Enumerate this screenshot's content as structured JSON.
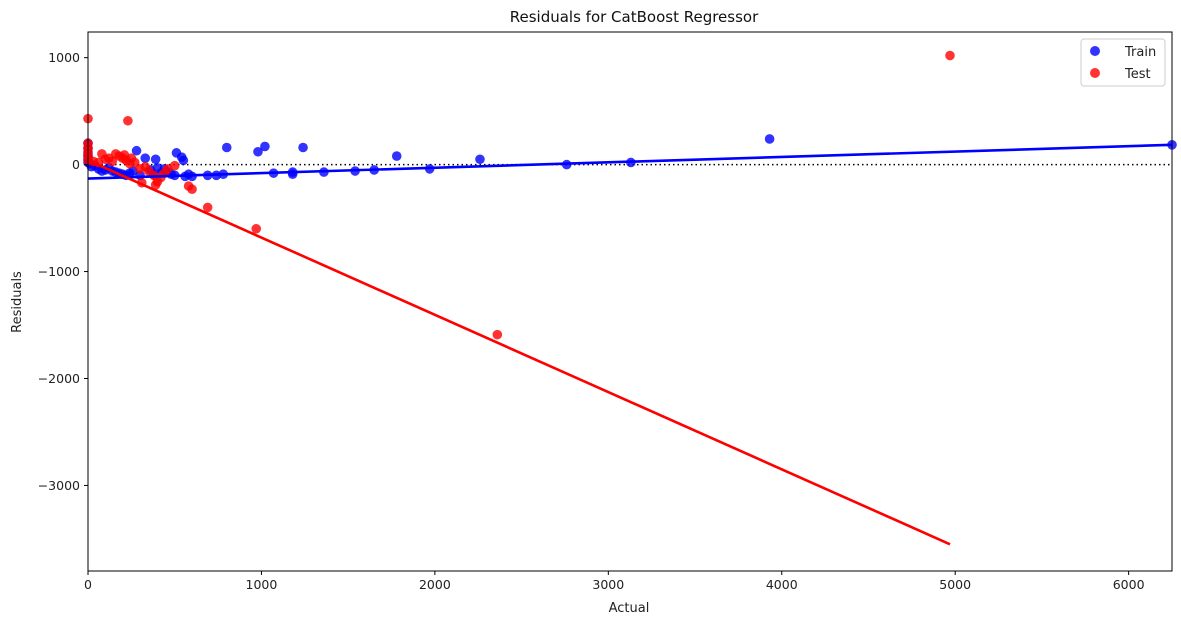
{
  "chart_data": {
    "type": "scatter",
    "title": "Residuals for CatBoost Regressor",
    "xlabel": "Actual",
    "ylabel": "Residuals",
    "xlim": [
      0,
      6250
    ],
    "ylim": [
      -3800,
      1240
    ],
    "xticks": [
      0,
      1000,
      2000,
      3000,
      4000,
      5000,
      6000
    ],
    "yticks": [
      -3000,
      -2000,
      -1000,
      0,
      1000
    ],
    "xtick_labels": [
      "0",
      "1000",
      "2000",
      "3000",
      "4000",
      "5000",
      "6000"
    ],
    "ytick_labels": [
      "−3000",
      "−2000",
      "−1000",
      "0",
      "1000"
    ],
    "zero_line": {
      "y": 0,
      "style": "dotted",
      "color": "#000000"
    },
    "legend_position": "top-right",
    "grid": false,
    "series": [
      {
        "name": "Train",
        "color": "#0000ff",
        "points": [
          [
            0,
            200
          ],
          [
            0,
            150
          ],
          [
            0,
            100
          ],
          [
            0,
            80
          ],
          [
            0,
            50
          ],
          [
            0,
            20
          ],
          [
            10,
            10
          ],
          [
            20,
            -20
          ],
          [
            40,
            -10
          ],
          [
            60,
            -40
          ],
          [
            80,
            -60
          ],
          [
            100,
            -50
          ],
          [
            120,
            -30
          ],
          [
            140,
            -60
          ],
          [
            160,
            -70
          ],
          [
            180,
            -80
          ],
          [
            200,
            -90
          ],
          [
            220,
            -100
          ],
          [
            240,
            -80
          ],
          [
            260,
            -60
          ],
          [
            280,
            130
          ],
          [
            300,
            -100
          ],
          [
            330,
            60
          ],
          [
            360,
            -50
          ],
          [
            380,
            -90
          ],
          [
            390,
            50
          ],
          [
            400,
            -30
          ],
          [
            420,
            -80
          ],
          [
            440,
            -40
          ],
          [
            460,
            -70
          ],
          [
            480,
            -90
          ],
          [
            500,
            -100
          ],
          [
            510,
            110
          ],
          [
            540,
            70
          ],
          [
            550,
            40
          ],
          [
            560,
            -110
          ],
          [
            580,
            -90
          ],
          [
            600,
            -110
          ],
          [
            690,
            -100
          ],
          [
            740,
            -100
          ],
          [
            780,
            -90
          ],
          [
            800,
            160
          ],
          [
            980,
            120
          ],
          [
            1020,
            170
          ],
          [
            1070,
            -80
          ],
          [
            1180,
            -70
          ],
          [
            1180,
            -90
          ],
          [
            1240,
            160
          ],
          [
            1360,
            -70
          ],
          [
            1540,
            -60
          ],
          [
            1650,
            -50
          ],
          [
            1780,
            80
          ],
          [
            1970,
            -40
          ],
          [
            2260,
            50
          ],
          [
            2760,
            0
          ],
          [
            3130,
            20
          ],
          [
            3930,
            240
          ],
          [
            6250,
            185
          ]
        ],
        "trend": [
          [
            0,
            -130
          ],
          [
            6250,
            185
          ]
        ]
      },
      {
        "name": "Test",
        "color": "#ff0000",
        "points": [
          [
            0,
            430
          ],
          [
            0,
            200
          ],
          [
            0,
            160
          ],
          [
            0,
            120
          ],
          [
            0,
            80
          ],
          [
            0,
            40
          ],
          [
            30,
            30
          ],
          [
            60,
            20
          ],
          [
            80,
            100
          ],
          [
            100,
            50
          ],
          [
            120,
            60
          ],
          [
            140,
            30
          ],
          [
            160,
            100
          ],
          [
            180,
            80
          ],
          [
            200,
            60
          ],
          [
            210,
            90
          ],
          [
            220,
            40
          ],
          [
            230,
            410
          ],
          [
            240,
            10
          ],
          [
            250,
            60
          ],
          [
            270,
            20
          ],
          [
            300,
            -40
          ],
          [
            310,
            -170
          ],
          [
            330,
            -20
          ],
          [
            350,
            -60
          ],
          [
            380,
            -100
          ],
          [
            390,
            -190
          ],
          [
            400,
            -160
          ],
          [
            420,
            -120
          ],
          [
            440,
            -80
          ],
          [
            460,
            -40
          ],
          [
            500,
            -10
          ],
          [
            580,
            -200
          ],
          [
            600,
            -230
          ],
          [
            690,
            -400
          ],
          [
            970,
            -600
          ],
          [
            2360,
            -1590
          ],
          [
            4970,
            1020
          ]
        ],
        "trend": [
          [
            0,
            40
          ],
          [
            4970,
            -3550
          ]
        ]
      }
    ]
  }
}
